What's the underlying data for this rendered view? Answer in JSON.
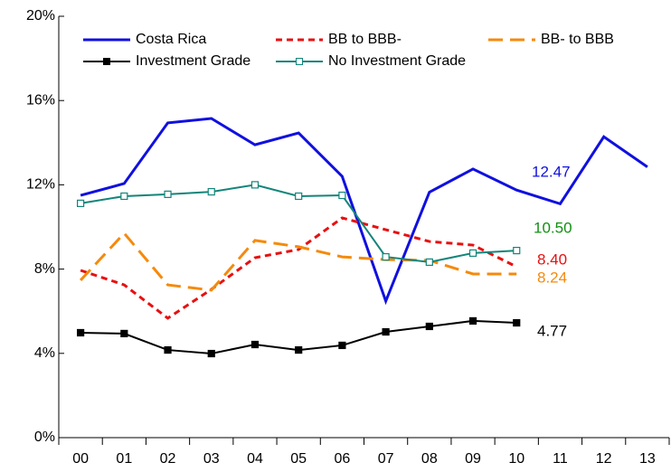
{
  "chart_data": {
    "type": "line",
    "categories": [
      "00",
      "01",
      "02",
      "03",
      "04",
      "05",
      "06",
      "07",
      "08",
      "09",
      "10",
      "11",
      "12",
      "13"
    ],
    "ylim": [
      0,
      20
    ],
    "yticks": [
      {
        "value": 0,
        "label": "0%"
      },
      {
        "value": 4,
        "label": "4%"
      },
      {
        "value": 8,
        "label": "8%"
      },
      {
        "value": 12,
        "label": "12%"
      },
      {
        "value": 16,
        "label": "16%"
      },
      {
        "value": 20,
        "label": "20%"
      }
    ],
    "series": [
      {
        "name": "Costa Rica",
        "color": "#1010e0",
        "dash": "solid",
        "marker": "none",
        "values": [
          11.5,
          12.06,
          14.94,
          15.15,
          13.9,
          14.46,
          12.4,
          6.48,
          11.65,
          12.75,
          11.75,
          11.1,
          14.28,
          12.85
        ]
      },
      {
        "name": "BB to BBB-",
        "color": "#e81010",
        "dash": "dashed",
        "marker": "none",
        "values": [
          7.94,
          7.25,
          5.67,
          7.04,
          8.54,
          8.93,
          10.43,
          9.87,
          9.31,
          9.14,
          8.11,
          null,
          null,
          null
        ]
      },
      {
        "name": "BB- to BBB",
        "color": "#f58a0c",
        "dash": "longdash",
        "marker": "none",
        "values": [
          7.47,
          9.7,
          7.25,
          7.0,
          9.36,
          9.06,
          8.58,
          8.45,
          8.41,
          7.77,
          7.77,
          null,
          null,
          null
        ]
      },
      {
        "name": "Investment Grade",
        "color": "#000000",
        "dash": "solid",
        "marker": "square-filled",
        "values": [
          4.98,
          4.94,
          4.16,
          3.99,
          4.42,
          4.16,
          4.38,
          5.02,
          5.28,
          5.54,
          5.45,
          null,
          null,
          null
        ]
      },
      {
        "name": "No Investment Grade",
        "color": "#12857a",
        "dash": "solid",
        "marker": "square-open",
        "values": [
          11.12,
          11.46,
          11.55,
          11.67,
          12.0,
          11.46,
          11.5,
          8.58,
          8.33,
          8.76,
          8.88,
          null,
          null,
          null
        ]
      }
    ],
    "annotations": [
      {
        "text": "12.47",
        "color": "#1010e0"
      },
      {
        "text": "10.50",
        "color": "#119011"
      },
      {
        "text": "8.40",
        "color": "#e81010"
      },
      {
        "text": "8.24",
        "color": "#f58a0c"
      },
      {
        "text": "4.77",
        "color": "#000000"
      }
    ]
  }
}
